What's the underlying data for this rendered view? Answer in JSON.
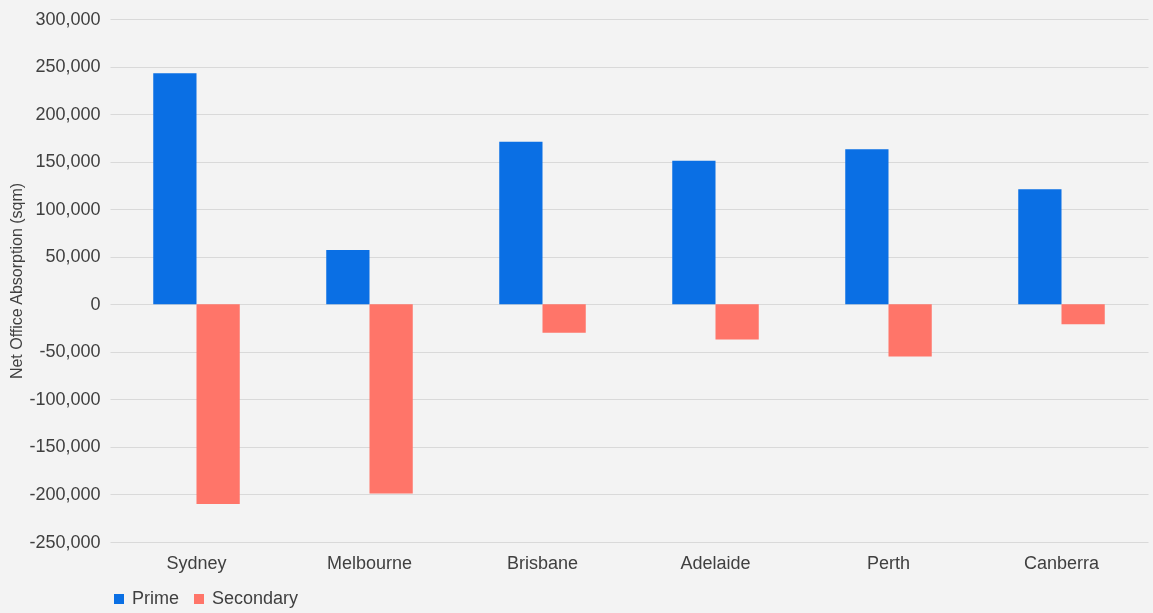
{
  "chart_data": {
    "type": "bar",
    "ylabel": "Net Office Absorption (sqm)",
    "categories": [
      "Sydney",
      "Melbourne",
      "Brisbane",
      "Adelaide",
      "Perth",
      "Canberra"
    ],
    "series": [
      {
        "name": "Prime",
        "color": "#0a6fe4",
        "values": [
          243000,
          57000,
          171000,
          151000,
          163000,
          121000
        ]
      },
      {
        "name": "Secondary",
        "color": "#ff7569",
        "values": [
          -210000,
          -199000,
          -30000,
          -37000,
          -55000,
          -21000
        ]
      }
    ],
    "ylim": [
      -250000,
      300000
    ],
    "yticks": [
      {
        "value": -250000,
        "label": "-250,000"
      },
      {
        "value": -200000,
        "label": "-200,000"
      },
      {
        "value": -150000,
        "label": "-150,000"
      },
      {
        "value": -100000,
        "label": "-100,000"
      },
      {
        "value": -50000,
        "label": "-50,000"
      },
      0,
      {
        "value": 50000,
        "label": "50,000"
      },
      {
        "value": 100000,
        "label": "100,000"
      },
      {
        "value": 150000,
        "label": "150,000"
      },
      {
        "value": 200000,
        "label": "200,000"
      },
      {
        "value": 250000,
        "label": "250,000"
      },
      {
        "value": 300000,
        "label": "300,000"
      }
    ],
    "grid": "y",
    "legend": "bottom"
  }
}
